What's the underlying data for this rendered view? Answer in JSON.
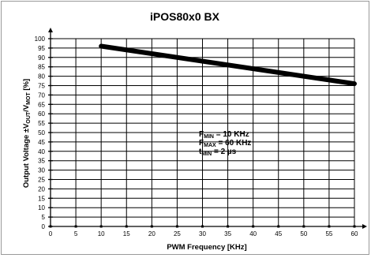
{
  "chart_data": {
    "type": "line",
    "title": "iPOS80x0 BX",
    "xlabel": "PWM Frequency [KHz]",
    "ylabel": {
      "base1": "Output Voltage  ±V",
      "sub1": "OUT",
      "base2": "/V",
      "sub2": "MOT",
      "base3": " [%]"
    },
    "xlim": [
      0,
      60
    ],
    "ylim": [
      0,
      100
    ],
    "x_ticks": [
      "0",
      "5",
      "10",
      "15",
      "20",
      "25",
      "30",
      "35",
      "40",
      "45",
      "50",
      "55",
      "60"
    ],
    "y_ticks": [
      "0",
      "5",
      "10",
      "15",
      "20",
      "25",
      "30",
      "35",
      "40",
      "45",
      "50",
      "55",
      "60",
      "65",
      "70",
      "75",
      "80",
      "85",
      "90",
      "95",
      "100"
    ],
    "grid": true,
    "series": [
      {
        "x": [
          10,
          60
        ],
        "y": [
          96,
          76
        ]
      }
    ],
    "annotations": [
      {
        "base": "F",
        "sub": "MIN",
        "text": " = 10 KHz"
      },
      {
        "base": "F",
        "sub": "MAX",
        "text": " = 60 KHz"
      },
      {
        "base": "t",
        "sub": "MIN",
        "text": " = 2 µs"
      }
    ]
  }
}
